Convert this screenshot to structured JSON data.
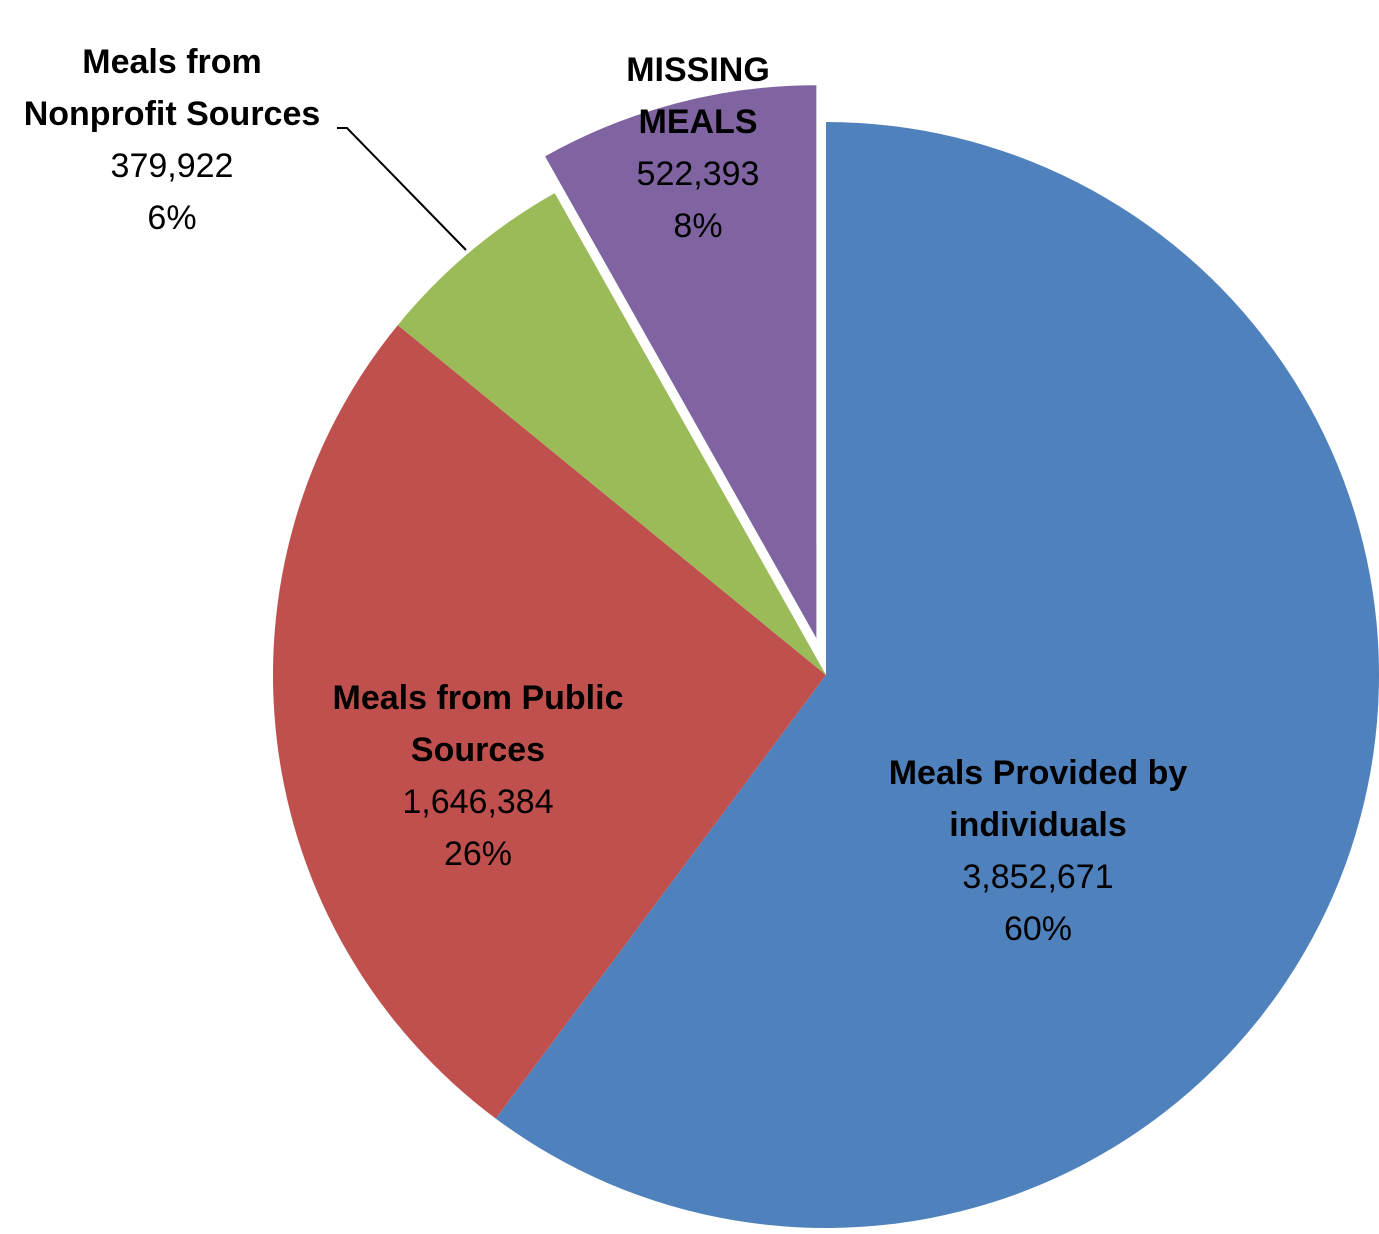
{
  "chart_data": {
    "type": "pie",
    "title": "",
    "slices": [
      {
        "name_lines": [
          "Meals Provided by",
          "individuals"
        ],
        "value": 3852671,
        "value_label": "3,852,671",
        "percent_label": "60%",
        "color": "#4F81BD",
        "exploded": false
      },
      {
        "name_lines": [
          "Meals from Public",
          "Sources"
        ],
        "value": 1646384,
        "value_label": "1,646,384",
        "percent_label": "26%",
        "color": "#C0504D",
        "exploded": false
      },
      {
        "name_lines": [
          "Meals from",
          "Nonprofit Sources"
        ],
        "value": 379922,
        "value_label": "379,922",
        "percent_label": "6%",
        "color": "#9BBB59",
        "exploded": false
      },
      {
        "name_lines": [
          "MISSING",
          "MEALS"
        ],
        "value": 522393,
        "value_label": "522,393",
        "percent_label": "8%",
        "color": "#8064A2",
        "exploded": true
      }
    ],
    "legend": "none",
    "labels": "data labels on or beside slices"
  }
}
